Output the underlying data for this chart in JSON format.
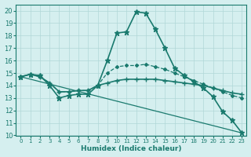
{
  "xlabel": "Humidex (Indice chaleur)",
  "ylabel": "",
  "background_color": "#d5efef",
  "grid_color": "#b0d8d8",
  "line_color": "#1a7a6e",
  "xlim": [
    -0.5,
    23.5
  ],
  "ylim": [
    10,
    20.5
  ],
  "yticks": [
    10,
    11,
    12,
    13,
    14,
    15,
    16,
    17,
    18,
    19,
    20
  ],
  "xticks": [
    0,
    1,
    2,
    3,
    4,
    5,
    6,
    7,
    8,
    9,
    10,
    11,
    12,
    13,
    14,
    15,
    16,
    17,
    18,
    19,
    20,
    21,
    22,
    23
  ],
  "series": [
    {
      "x": [
        0,
        1,
        2,
        3,
        4,
        5,
        6,
        7,
        8,
        9,
        10,
        11,
        12,
        13,
        14,
        15,
        16,
        17,
        18,
        19,
        20,
        21,
        22,
        23
      ],
      "y": [
        14.7,
        14.9,
        14.8,
        14.0,
        13.0,
        13.2,
        13.3,
        13.3,
        14.0,
        16.0,
        18.2,
        18.3,
        19.9,
        19.8,
        18.5,
        17.0,
        15.4,
        14.8,
        14.3,
        13.8,
        13.1,
        11.9,
        11.2,
        10.2
      ],
      "marker": "*",
      "linestyle": "-",
      "linewidth": 1.2,
      "markersize": 5
    },
    {
      "x": [
        0,
        1,
        2,
        3,
        4,
        5,
        6,
        7,
        8,
        9,
        10,
        11,
        12,
        13,
        14,
        15,
        16,
        17,
        18,
        19,
        20,
        21,
        22,
        23
      ],
      "y": [
        14.7,
        14.9,
        14.7,
        14.2,
        13.5,
        13.5,
        13.6,
        13.6,
        14.0,
        14.2,
        14.4,
        14.5,
        14.5,
        14.5,
        14.5,
        14.4,
        14.3,
        14.2,
        14.1,
        14.0,
        13.8,
        13.6,
        13.4,
        13.3
      ],
      "marker": "+",
      "linestyle": "-",
      "linewidth": 1.2,
      "markersize": 5
    },
    {
      "x": [
        0,
        1,
        2,
        3,
        4,
        5,
        6,
        7,
        8,
        9,
        10,
        11,
        12,
        13,
        14,
        15,
        16,
        17,
        18,
        19,
        20,
        21,
        22,
        23
      ],
      "y": [
        14.7,
        14.9,
        14.7,
        14.2,
        13.5,
        13.5,
        13.6,
        13.6,
        14.0,
        15.0,
        15.5,
        15.6,
        15.6,
        15.7,
        15.5,
        15.3,
        15.0,
        14.7,
        14.4,
        14.1,
        13.8,
        13.5,
        13.2,
        13.0
      ],
      "marker": "D",
      "linestyle": "--",
      "linewidth": 0.9,
      "markersize": 2
    },
    {
      "x": [
        0,
        23
      ],
      "y": [
        14.7,
        10.2
      ],
      "marker": null,
      "linestyle": "-",
      "linewidth": 0.9,
      "markersize": 0
    }
  ]
}
